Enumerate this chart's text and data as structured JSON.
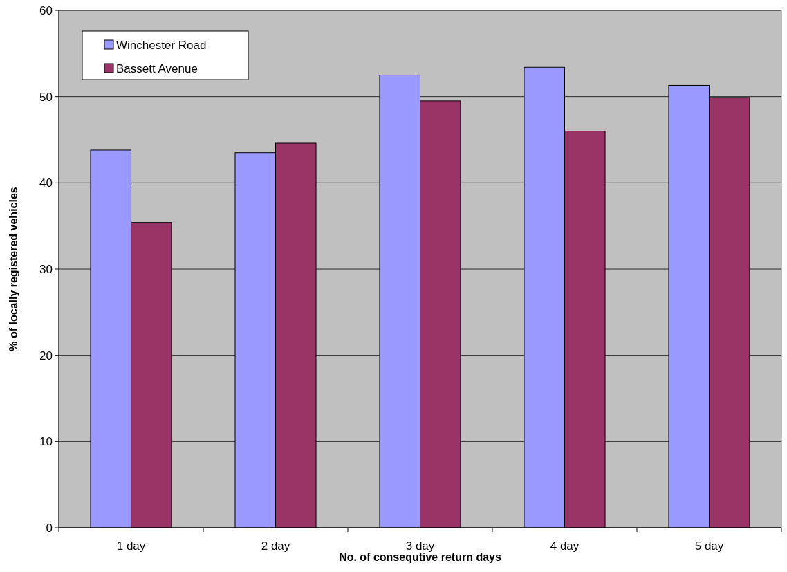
{
  "chart_data": {
    "type": "bar",
    "xlabel": "No. of consequtive return days",
    "ylabel": "% of locally registered vehicles",
    "categories": [
      "1 day",
      "2 day",
      "3 day",
      "4 day",
      "5 day"
    ],
    "series": [
      {
        "name": "Winchester Road",
        "color": "#9999ff",
        "values": [
          43.8,
          43.5,
          52.5,
          53.4,
          51.3
        ]
      },
      {
        "name": "Bassett Avenue",
        "color": "#993366",
        "values": [
          35.4,
          44.6,
          49.5,
          46.0,
          49.9
        ]
      }
    ],
    "ylim": [
      0,
      60
    ],
    "yticks": [
      0,
      10,
      20,
      30,
      40,
      50,
      60
    ],
    "grid": "y",
    "legend": "top left"
  }
}
